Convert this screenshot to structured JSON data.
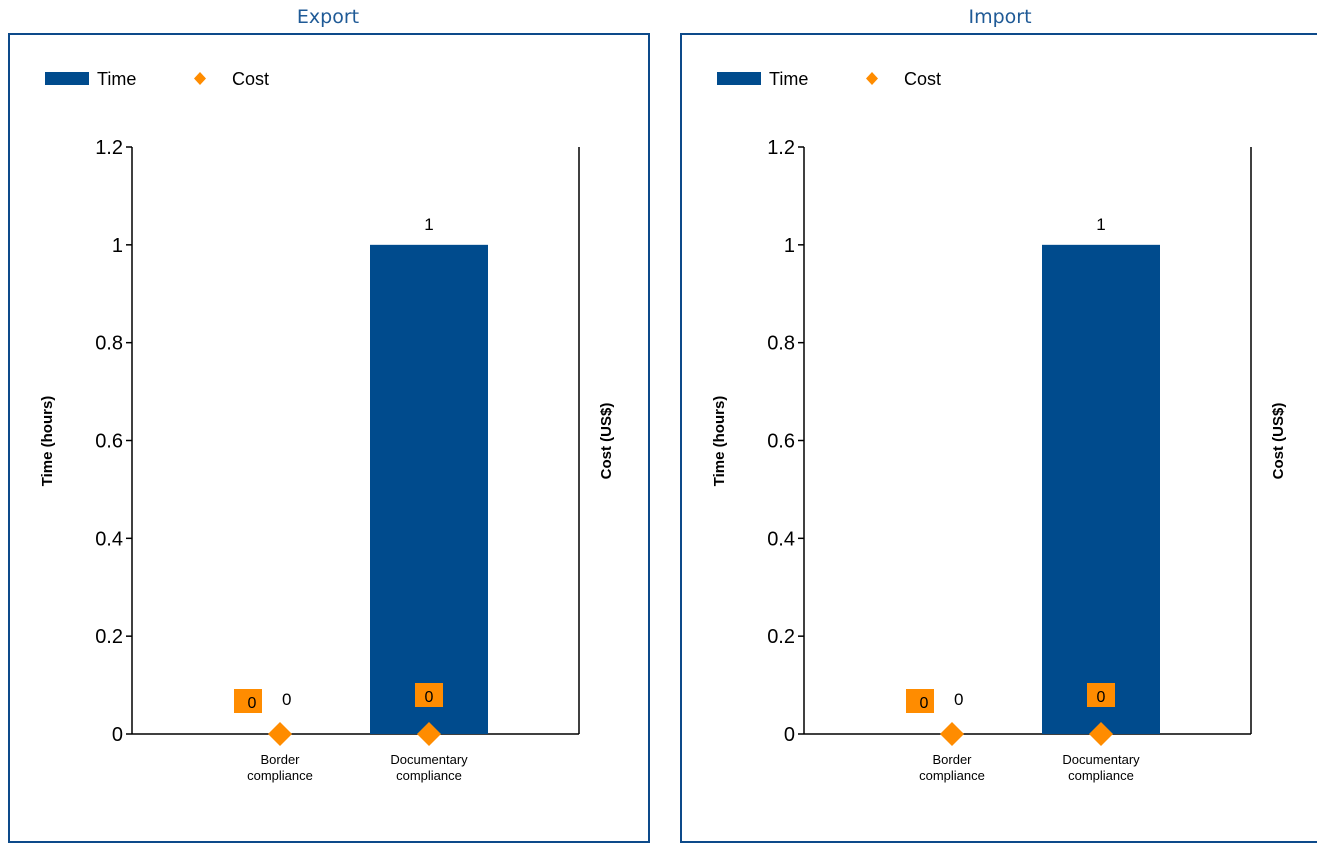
{
  "colors": {
    "time": "#004b8d",
    "cost": "#ff8c00",
    "title": "#1f5a96",
    "frame": "#0d4a8a",
    "axis": "#000000"
  },
  "chart_data": [
    {
      "type": "bar",
      "title": "Export",
      "ylabel": "Time (hours)",
      "y2label": "Cost (US$)",
      "ylim": [
        0,
        1.2
      ],
      "yticks": [
        "0",
        "0.2",
        "0.4",
        "0.6",
        "0.8",
        "1",
        "1.2"
      ],
      "legend": {
        "position": "top-left",
        "items": [
          "Time",
          "Cost"
        ]
      },
      "categories": [
        [
          "Border",
          "compliance"
        ],
        [
          "Documentary",
          "compliance"
        ]
      ],
      "series": [
        {
          "name": "Time",
          "kind": "bar",
          "values": [
            0,
            1
          ],
          "labels": [
            "0",
            "1"
          ]
        },
        {
          "name": "Cost",
          "kind": "diamond",
          "values": [
            0,
            0
          ],
          "labels": [
            "0",
            "0"
          ]
        }
      ]
    },
    {
      "type": "bar",
      "title": "Import",
      "ylabel": "Time (hours)",
      "y2label": "Cost (US$)",
      "ylim": [
        0,
        1.2
      ],
      "yticks": [
        "0",
        "0.2",
        "0.4",
        "0.6",
        "0.8",
        "1",
        "1.2"
      ],
      "legend": {
        "position": "top-left",
        "items": [
          "Time",
          "Cost"
        ]
      },
      "categories": [
        [
          "Border",
          "compliance"
        ],
        [
          "Documentary",
          "compliance"
        ]
      ],
      "series": [
        {
          "name": "Time",
          "kind": "bar",
          "values": [
            0,
            1
          ],
          "labels": [
            "0",
            "1"
          ]
        },
        {
          "name": "Cost",
          "kind": "diamond",
          "values": [
            0,
            0
          ],
          "labels": [
            "0",
            "0"
          ]
        }
      ]
    }
  ]
}
